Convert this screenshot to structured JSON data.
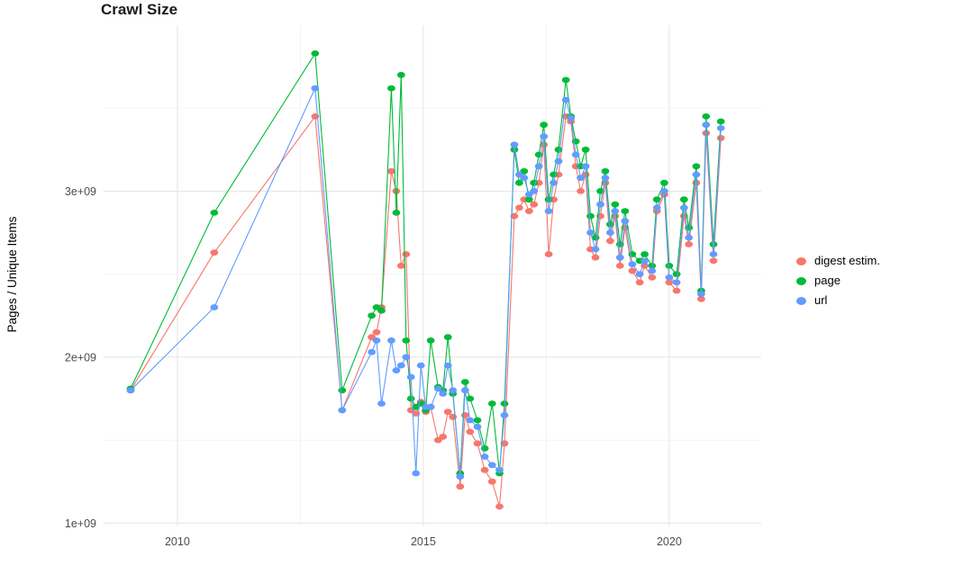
{
  "chart_data": {
    "type": "line",
    "title": "Crawl Size",
    "xlabel": "",
    "ylabel": "Pages / Unique Items",
    "grid": true,
    "legend_position": "right",
    "x_range": [
      2008.5,
      2021.87
    ],
    "y_range": [
      0.98,
      4.0
    ],
    "y_unit": 1000000000,
    "x_ticks": {
      "values": [
        2010,
        2015,
        2020
      ],
      "labels": [
        "2010",
        "2015",
        "2020"
      ],
      "minor": [
        2012.5,
        2017.5
      ]
    },
    "y_ticks": {
      "values": [
        1,
        2,
        3
      ],
      "labels": [
        "1e+09",
        "2e+09",
        "3e+09"
      ],
      "minor": [
        1.5,
        2.5,
        3.5
      ]
    },
    "series": [
      {
        "name": "digest estim.",
        "color": "#F8766D",
        "points": [
          [
            2009.05,
            1.8
          ],
          [
            2010.75,
            2.63
          ],
          [
            2012.8,
            3.45
          ],
          [
            2013.35,
            1.68
          ],
          [
            2013.95,
            2.12
          ],
          [
            2014.05,
            2.15
          ],
          [
            2014.15,
            2.3
          ],
          [
            2014.35,
            3.12
          ],
          [
            2014.45,
            3.0
          ],
          [
            2014.55,
            2.55
          ],
          [
            2014.65,
            2.62
          ],
          [
            2014.75,
            1.68
          ],
          [
            2014.85,
            1.66
          ],
          [
            2014.95,
            1.73
          ],
          [
            2015.05,
            1.67
          ],
          [
            2015.15,
            1.7
          ],
          [
            2015.3,
            1.5
          ],
          [
            2015.4,
            1.52
          ],
          [
            2015.5,
            1.67
          ],
          [
            2015.6,
            1.64
          ],
          [
            2015.75,
            1.22
          ],
          [
            2015.85,
            1.65
          ],
          [
            2015.95,
            1.55
          ],
          [
            2016.1,
            1.48
          ],
          [
            2016.25,
            1.32
          ],
          [
            2016.4,
            1.25
          ],
          [
            2016.55,
            1.1
          ],
          [
            2016.65,
            1.48
          ],
          [
            2016.85,
            2.85
          ],
          [
            2016.95,
            2.9
          ],
          [
            2017.05,
            2.95
          ],
          [
            2017.15,
            2.88
          ],
          [
            2017.25,
            2.92
          ],
          [
            2017.35,
            3.05
          ],
          [
            2017.45,
            3.28
          ],
          [
            2017.55,
            2.62
          ],
          [
            2017.65,
            2.95
          ],
          [
            2017.75,
            3.1
          ],
          [
            2017.9,
            3.45
          ],
          [
            2018.0,
            3.42
          ],
          [
            2018.1,
            3.15
          ],
          [
            2018.2,
            3.0
          ],
          [
            2018.3,
            3.1
          ],
          [
            2018.4,
            2.65
          ],
          [
            2018.5,
            2.6
          ],
          [
            2018.6,
            2.85
          ],
          [
            2018.7,
            3.05
          ],
          [
            2018.8,
            2.7
          ],
          [
            2018.9,
            2.85
          ],
          [
            2019.0,
            2.55
          ],
          [
            2019.1,
            2.78
          ],
          [
            2019.25,
            2.52
          ],
          [
            2019.4,
            2.45
          ],
          [
            2019.5,
            2.55
          ],
          [
            2019.65,
            2.48
          ],
          [
            2019.75,
            2.88
          ],
          [
            2019.9,
            2.98
          ],
          [
            2020.0,
            2.45
          ],
          [
            2020.15,
            2.4
          ],
          [
            2020.3,
            2.85
          ],
          [
            2020.4,
            2.68
          ],
          [
            2020.55,
            3.05
          ],
          [
            2020.65,
            2.35
          ],
          [
            2020.75,
            3.35
          ],
          [
            2020.9,
            2.58
          ],
          [
            2021.05,
            3.32
          ]
        ]
      },
      {
        "name": "page",
        "color": "#00BA38",
        "points": [
          [
            2009.05,
            1.81
          ],
          [
            2010.75,
            2.87
          ],
          [
            2012.8,
            3.83
          ],
          [
            2013.35,
            1.8
          ],
          [
            2013.95,
            2.25
          ],
          [
            2014.05,
            2.3
          ],
          [
            2014.15,
            2.28
          ],
          [
            2014.35,
            3.62
          ],
          [
            2014.45,
            2.87
          ],
          [
            2014.55,
            3.7
          ],
          [
            2014.65,
            2.1
          ],
          [
            2014.75,
            1.75
          ],
          [
            2014.85,
            1.7
          ],
          [
            2014.95,
            1.72
          ],
          [
            2015.05,
            1.68
          ],
          [
            2015.15,
            2.1
          ],
          [
            2015.3,
            1.82
          ],
          [
            2015.4,
            1.8
          ],
          [
            2015.5,
            2.12
          ],
          [
            2015.6,
            1.78
          ],
          [
            2015.75,
            1.3
          ],
          [
            2015.85,
            1.85
          ],
          [
            2015.95,
            1.75
          ],
          [
            2016.1,
            1.62
          ],
          [
            2016.25,
            1.45
          ],
          [
            2016.4,
            1.72
          ],
          [
            2016.55,
            1.3
          ],
          [
            2016.65,
            1.72
          ],
          [
            2016.85,
            3.25
          ],
          [
            2016.95,
            3.05
          ],
          [
            2017.05,
            3.12
          ],
          [
            2017.15,
            2.95
          ],
          [
            2017.25,
            3.05
          ],
          [
            2017.35,
            3.22
          ],
          [
            2017.45,
            3.4
          ],
          [
            2017.55,
            2.95
          ],
          [
            2017.65,
            3.1
          ],
          [
            2017.75,
            3.25
          ],
          [
            2017.9,
            3.67
          ],
          [
            2018.0,
            3.45
          ],
          [
            2018.1,
            3.3
          ],
          [
            2018.2,
            3.15
          ],
          [
            2018.3,
            3.25
          ],
          [
            2018.4,
            2.85
          ],
          [
            2018.5,
            2.72
          ],
          [
            2018.6,
            3.0
          ],
          [
            2018.7,
            3.12
          ],
          [
            2018.8,
            2.8
          ],
          [
            2018.9,
            2.92
          ],
          [
            2019.0,
            2.68
          ],
          [
            2019.1,
            2.88
          ],
          [
            2019.25,
            2.62
          ],
          [
            2019.4,
            2.58
          ],
          [
            2019.5,
            2.62
          ],
          [
            2019.65,
            2.55
          ],
          [
            2019.75,
            2.95
          ],
          [
            2019.9,
            3.05
          ],
          [
            2020.0,
            2.55
          ],
          [
            2020.15,
            2.5
          ],
          [
            2020.3,
            2.95
          ],
          [
            2020.4,
            2.78
          ],
          [
            2020.55,
            3.15
          ],
          [
            2020.65,
            2.4
          ],
          [
            2020.75,
            3.45
          ],
          [
            2020.9,
            2.68
          ],
          [
            2021.05,
            3.42
          ]
        ]
      },
      {
        "name": "url",
        "color": "#619CFF",
        "points": [
          [
            2009.05,
            1.8
          ],
          [
            2010.75,
            2.3
          ],
          [
            2012.8,
            3.62
          ],
          [
            2013.35,
            1.68
          ],
          [
            2013.95,
            2.03
          ],
          [
            2014.05,
            2.1
          ],
          [
            2014.15,
            1.72
          ],
          [
            2014.35,
            2.1
          ],
          [
            2014.45,
            1.92
          ],
          [
            2014.55,
            1.95
          ],
          [
            2014.65,
            2.0
          ],
          [
            2014.75,
            1.88
          ],
          [
            2014.85,
            1.3
          ],
          [
            2014.95,
            1.95
          ],
          [
            2015.05,
            1.7
          ],
          [
            2015.15,
            1.7
          ],
          [
            2015.3,
            1.81
          ],
          [
            2015.4,
            1.78
          ],
          [
            2015.5,
            1.95
          ],
          [
            2015.6,
            1.8
          ],
          [
            2015.75,
            1.28
          ],
          [
            2015.85,
            1.8
          ],
          [
            2015.95,
            1.62
          ],
          [
            2016.1,
            1.58
          ],
          [
            2016.25,
            1.4
          ],
          [
            2016.4,
            1.35
          ],
          [
            2016.55,
            1.32
          ],
          [
            2016.65,
            1.65
          ],
          [
            2016.85,
            3.28
          ],
          [
            2016.95,
            3.1
          ],
          [
            2017.05,
            3.08
          ],
          [
            2017.15,
            2.98
          ],
          [
            2017.25,
            3.0
          ],
          [
            2017.35,
            3.15
          ],
          [
            2017.45,
            3.33
          ],
          [
            2017.55,
            2.88
          ],
          [
            2017.65,
            3.05
          ],
          [
            2017.75,
            3.18
          ],
          [
            2017.9,
            3.55
          ],
          [
            2018.0,
            3.44
          ],
          [
            2018.1,
            3.22
          ],
          [
            2018.2,
            3.08
          ],
          [
            2018.3,
            3.15
          ],
          [
            2018.4,
            2.75
          ],
          [
            2018.5,
            2.65
          ],
          [
            2018.6,
            2.92
          ],
          [
            2018.7,
            3.08
          ],
          [
            2018.8,
            2.75
          ],
          [
            2018.9,
            2.88
          ],
          [
            2019.0,
            2.6
          ],
          [
            2019.1,
            2.82
          ],
          [
            2019.25,
            2.56
          ],
          [
            2019.4,
            2.5
          ],
          [
            2019.5,
            2.58
          ],
          [
            2019.65,
            2.52
          ],
          [
            2019.75,
            2.9
          ],
          [
            2019.9,
            3.0
          ],
          [
            2020.0,
            2.48
          ],
          [
            2020.15,
            2.45
          ],
          [
            2020.3,
            2.9
          ],
          [
            2020.4,
            2.72
          ],
          [
            2020.55,
            3.1
          ],
          [
            2020.65,
            2.38
          ],
          [
            2020.75,
            3.4
          ],
          [
            2020.9,
            2.62
          ],
          [
            2021.05,
            3.38
          ]
        ]
      }
    ]
  }
}
